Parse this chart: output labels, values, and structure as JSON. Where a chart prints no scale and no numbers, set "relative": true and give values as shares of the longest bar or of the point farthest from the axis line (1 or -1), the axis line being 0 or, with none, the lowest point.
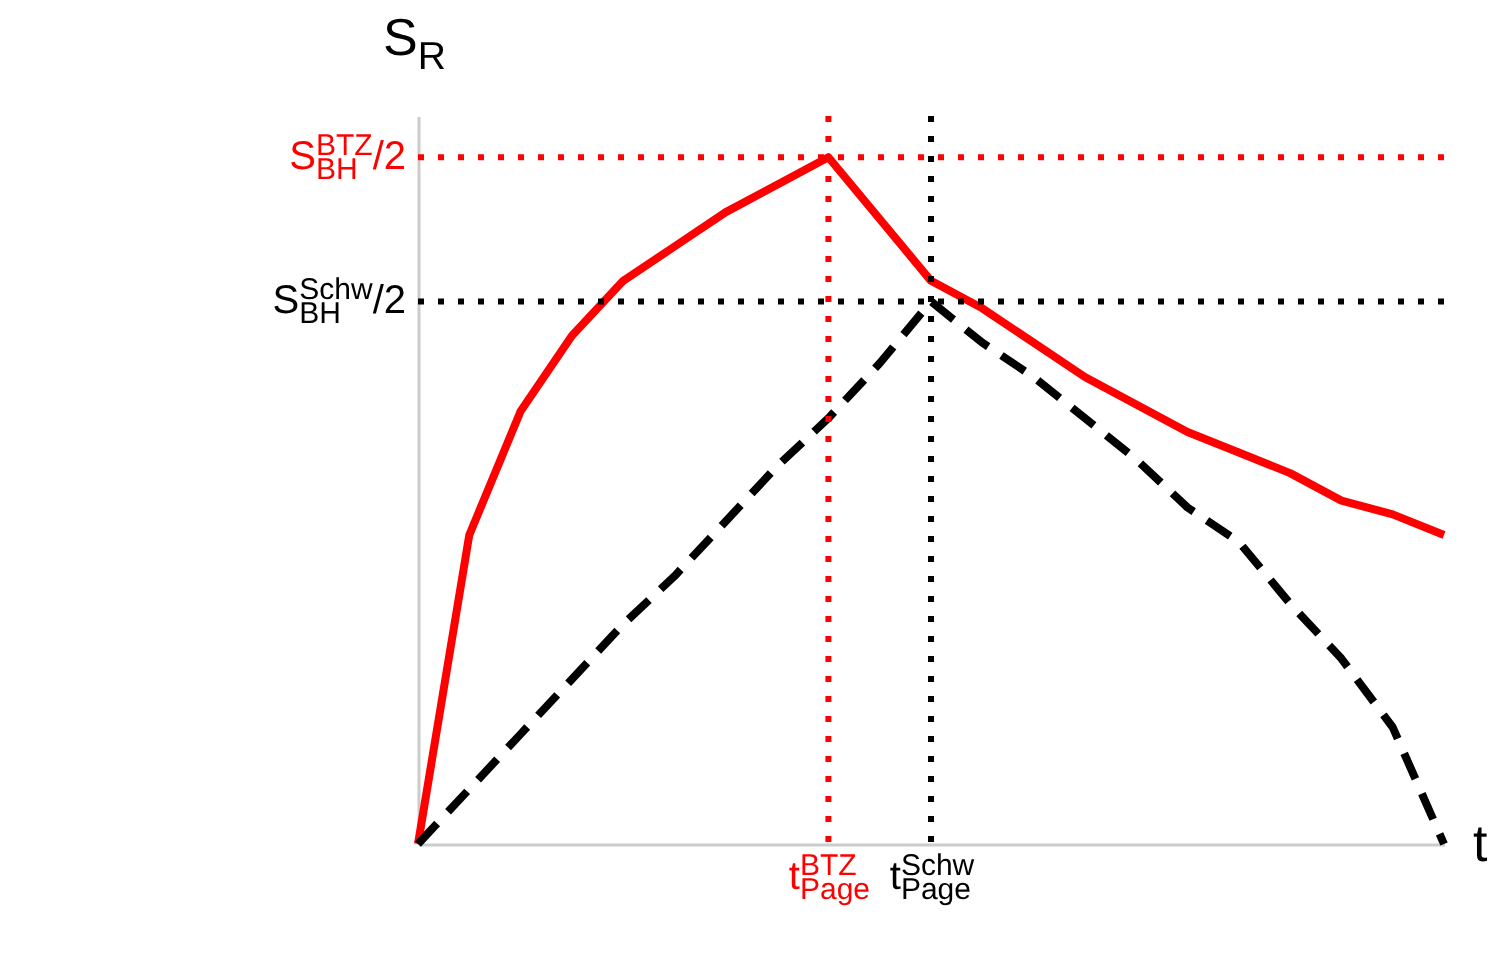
{
  "chart_data": {
    "type": "line",
    "relative": true,
    "xlabel": "t",
    "ylabel": "S$_{R}$",
    "categories": [
      null,
      null,
      null,
      null,
      null,
      null,
      null,
      null,
      "t$_{Page}$$^{BTZ}$",
      null,
      "t$_{Page}$$^{Schw}$",
      null,
      null,
      null,
      null,
      null,
      null,
      null,
      null,
      null,
      null
    ],
    "series": [
      {
        "color": "#ff0000",
        "line_style": "solid",
        "values": [
          0,
          0.45,
          0.63,
          0.74,
          0.82,
          0.87,
          0.92,
          0.96,
          1,
          0.91,
          0.82,
          0.78,
          0.73,
          0.68,
          0.64,
          0.6,
          0.57,
          0.54,
          0.5,
          0.48,
          0.45
        ]
      },
      {
        "color": "#000000",
        "line_style": "dashed",
        "values": [
          0,
          0.08,
          0.16,
          0.24,
          0.32,
          0.39,
          0.47,
          0.55,
          0.62,
          0.7,
          0.79,
          0.73,
          0.68,
          0.62,
          0.56,
          0.49,
          0.44,
          0.35,
          0.27,
          0.17,
          0
        ]
      }
    ],
    "ref_lines": [
      {
        "axis": "y",
        "value": 1,
        "label": "S$_{BH}$$^{BTZ}$/2",
        "color": "#ff0000",
        "line_style": "dotted"
      },
      {
        "axis": "y",
        "value": 0.79,
        "label": "S$_{BH}$$^{Schw}$/2",
        "color": "#000000",
        "line_style": "dotted"
      },
      {
        "axis": "x",
        "value": "t$_{Page}$$^{BTZ}$",
        "color": "#ff0000",
        "line_style": "dotted"
      },
      {
        "axis": "x",
        "value": "t$_{Page}$$^{Schw}$",
        "color": "#000000",
        "line_style": "dotted"
      }
    ]
  }
}
